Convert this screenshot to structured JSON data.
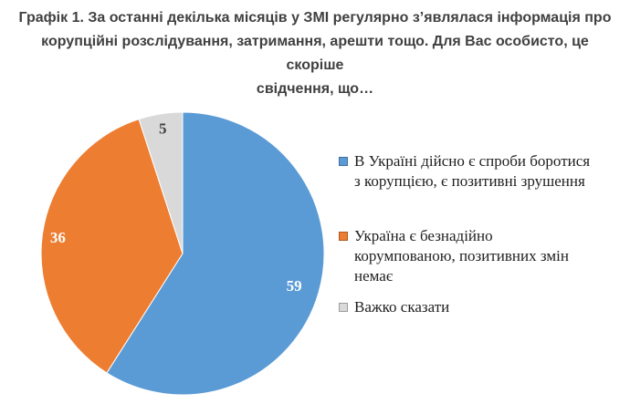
{
  "title": {
    "lines": [
      "Графік 1. За останні декілька місяців у ЗМІ регулярно з’являлася інформація про",
      "корупційні розслідування, затримання, арешти тощо. Для Вас особисто, це скоріше",
      "свідчення, що…"
    ]
  },
  "chart_data": {
    "type": "pie",
    "title": "Графік 1. За останні декілька місяців у ЗМІ регулярно з’являлася інформація про корупційні розслідування, затримання, арешти тощо. Для Вас особисто, це скоріше свідчення, що…",
    "unit": "percent",
    "total": 100,
    "start_angle_deg": 0,
    "direction": "clockwise",
    "legend_position": "right",
    "data_labels": "values inside slices",
    "background": "#FFFFFF",
    "slices": [
      {
        "label": "В Україні дійсно є спроби боротися з корупцією, є позитивні зрушення",
        "label_lines": [
          "В Україні дійсно є спроби боротися",
          "з корупцією, є позитивні зрушення"
        ],
        "value": 59,
        "color": "#5B9BD5",
        "value_label_color": "#FFFFFF"
      },
      {
        "label": "Україна є безнадійно корумпованою, позитивних змін немає",
        "label_lines": [
          "Україна є безнадійно",
          "корумпованою, позитивних змін",
          "немає"
        ],
        "value": 36,
        "color": "#ED7D31",
        "value_label_color": "#FFFFFF"
      },
      {
        "label": "Важко сказати",
        "label_lines": [
          "Важко сказати"
        ],
        "value": 5,
        "color": "#D9D9D9",
        "value_label_color": "#404040"
      }
    ]
  },
  "colors": {
    "title_text": "#404040",
    "legend_text": "#1F1F1F"
  }
}
